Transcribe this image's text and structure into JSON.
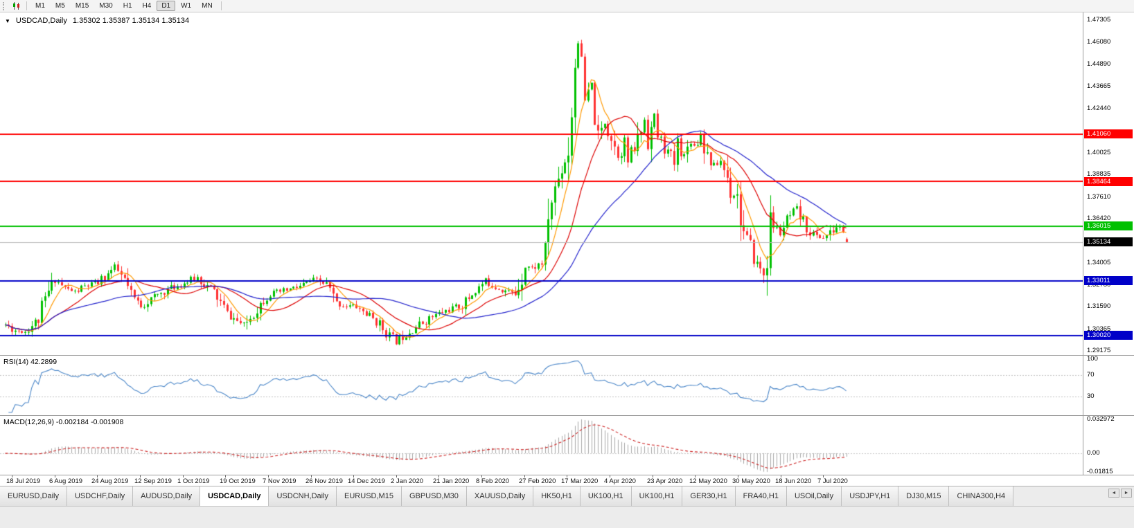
{
  "toolbar": {
    "timeframes": [
      {
        "label": "M1",
        "active": false
      },
      {
        "label": "M5",
        "active": false
      },
      {
        "label": "M15",
        "active": false
      },
      {
        "label": "M30",
        "active": false
      },
      {
        "label": "H1",
        "active": false
      },
      {
        "label": "H4",
        "active": false
      },
      {
        "label": "D1",
        "active": true
      },
      {
        "label": "W1",
        "active": false
      },
      {
        "label": "MN",
        "active": false
      }
    ]
  },
  "icons": {
    "collapse": "▼",
    "scroll_left": "◄",
    "scroll_right": "►"
  },
  "main_chart": {
    "title": "USDCAD,Daily",
    "ohlc": "1.35302 1.35387 1.35134 1.35134"
  },
  "rsi_panel": {
    "label": "RSI(14) 42.2899",
    "line_color": "#4a86c8",
    "level_lines": [
      70,
      30
    ],
    "scale_labels": [
      {
        "value": 100,
        "text": "100"
      },
      {
        "value": 70,
        "text": "70"
      },
      {
        "value": 30,
        "text": "30"
      }
    ]
  },
  "macd_panel": {
    "label": "MACD(12,26,9) -0.002184 -0.001908",
    "scale_top": "0.032972",
    "scale_zero": "0.00",
    "scale_bottom": "-0.01815",
    "histogram_color": "#a8a8a8",
    "signal_color": "#cc2222"
  },
  "price_scale": {
    "ticks": [
      "1.47305",
      "1.46080",
      "1.44890",
      "1.43665",
      "1.42440",
      "1.40025",
      "1.38835",
      "1.37610",
      "1.36420",
      "1.34005",
      "1.32780",
      "1.31590",
      "1.30365",
      "1.29175"
    ],
    "current_price_badge": {
      "text": "1.35134",
      "value": 1.35134,
      "background": "#000000",
      "text_color": "#ffffff"
    }
  },
  "date_axis": [
    "18 Jul 2019",
    "6 Aug 2019",
    "24 Aug 2019",
    "12 Sep 2019",
    "1 Oct 2019",
    "19 Oct 2019",
    "7 Nov 2019",
    "26 Nov 2019",
    "14 Dec 2019",
    "2 Jan 2020",
    "21 Jan 2020",
    "8 Feb 2020",
    "27 Feb 2020",
    "17 Mar 2020",
    "4 Apr 2020",
    "23 Apr 2020",
    "12 May 2020",
    "30 May 2020",
    "18 Jun 2020",
    "7 Jul 2020"
  ],
  "tabs": {
    "active_index": 3,
    "items": [
      "EURUSD,Daily",
      "USDCHF,Daily",
      "AUDUSD,Daily",
      "USDCAD,Daily",
      "USDCNH,Daily",
      "EURUSD,M15",
      "GBPUSD,M30",
      "XAUUSD,Daily",
      "HK50,H1",
      "UK100,H1",
      "UK100,H1",
      "GER30,H1",
      "FRA40,H1",
      "USOil,Daily",
      "USDJPY,H1",
      "DJ30,M15",
      "CHINA300,H4"
    ]
  },
  "chart_data": {
    "type": "candlestick",
    "symbol": "USDCAD",
    "timeframe": "Daily",
    "title": "USDCAD,Daily",
    "last_candle": {
      "open": 1.35302,
      "high": 1.35387,
      "low": 1.35134,
      "close": 1.35134
    },
    "current_price": 1.35134,
    "visible_price_range": {
      "min": 1.28908,
      "max": 1.47725
    },
    "candle_count": 255,
    "seed": 11,
    "candle_colors": {
      "up": "#00c000",
      "down": "#ff3232"
    },
    "close_path_keypoints": [
      [
        0,
        1.306
      ],
      [
        3,
        1.303
      ],
      [
        6,
        1.3025
      ],
      [
        10,
        1.309
      ],
      [
        13,
        1.324
      ],
      [
        15,
        1.331
      ],
      [
        18,
        1.326
      ],
      [
        21,
        1.324
      ],
      [
        24,
        1.327
      ],
      [
        28,
        1.329
      ],
      [
        31,
        1.334
      ],
      [
        33,
        1.3375
      ],
      [
        36,
        1.33
      ],
      [
        38,
        1.322
      ],
      [
        41,
        1.3165
      ],
      [
        44,
        1.32
      ],
      [
        47,
        1.3235
      ],
      [
        50,
        1.326
      ],
      [
        54,
        1.329
      ],
      [
        58,
        1.332
      ],
      [
        61,
        1.327
      ],
      [
        63,
        1.324
      ],
      [
        65,
        1.318
      ],
      [
        67,
        1.312
      ],
      [
        70,
        1.308
      ],
      [
        72,
        1.3055
      ],
      [
        74,
        1.31
      ],
      [
        76,
        1.315
      ],
      [
        78,
        1.32
      ],
      [
        80,
        1.323
      ],
      [
        83,
        1.324
      ],
      [
        86,
        1.3255
      ],
      [
        89,
        1.327
      ],
      [
        93,
        1.3305
      ],
      [
        95,
        1.3295
      ],
      [
        97,
        1.328
      ],
      [
        100,
        1.3175
      ],
      [
        103,
        1.3165
      ],
      [
        106,
        1.316
      ],
      [
        109,
        1.312
      ],
      [
        112,
        1.308
      ],
      [
        115,
        1.302
      ],
      [
        118,
        1.2965
      ],
      [
        120,
        1.3
      ],
      [
        124,
        1.305
      ],
      [
        128,
        1.3095
      ],
      [
        132,
        1.313
      ],
      [
        135,
        1.315
      ],
      [
        138,
        1.3165
      ],
      [
        141,
        1.323
      ],
      [
        145,
        1.33
      ],
      [
        148,
        1.327
      ],
      [
        150,
        1.3255
      ],
      [
        152,
        1.324
      ],
      [
        154,
        1.323
      ],
      [
        156,
        1.333
      ],
      [
        157,
        1.339
      ],
      [
        159,
        1.337
      ],
      [
        160,
        1.338
      ],
      [
        162,
        1.34
      ],
      [
        163,
        1.342
      ],
      [
        164,
        1.366
      ],
      [
        166,
        1.381
      ],
      [
        168,
        1.392
      ],
      [
        170,
        1.402
      ],
      [
        171,
        1.424
      ],
      [
        172,
        1.449
      ],
      [
        173,
        1.463
      ],
      [
        174,
        1.444
      ],
      [
        175,
        1.428
      ],
      [
        177,
        1.436
      ],
      [
        179,
        1.408
      ],
      [
        181,
        1.417
      ],
      [
        183,
        1.409
      ],
      [
        185,
        1.399
      ],
      [
        187,
        1.406
      ],
      [
        188,
        1.3955
      ],
      [
        190,
        1.403
      ],
      [
        192,
        1.413
      ],
      [
        193,
        1.419
      ],
      [
        194,
        1.406
      ],
      [
        196,
        1.42
      ],
      [
        197,
        1.41
      ],
      [
        199,
        1.403
      ],
      [
        201,
        1.398
      ],
      [
        202,
        1.3945
      ],
      [
        203,
        1.406
      ],
      [
        205,
        1.399
      ],
      [
        207,
        1.407
      ],
      [
        208,
        1.404
      ],
      [
        210,
        1.411
      ],
      [
        212,
        1.399
      ],
      [
        214,
        1.393
      ],
      [
        216,
        1.396
      ],
      [
        218,
        1.387
      ],
      [
        219,
        1.379
      ],
      [
        221,
        1.377
      ],
      [
        223,
        1.356
      ],
      [
        225,
        1.348
      ],
      [
        227,
        1.339
      ],
      [
        229,
        1.334
      ],
      [
        230,
        1.344
      ],
      [
        231,
        1.362
      ],
      [
        233,
        1.358
      ],
      [
        234,
        1.356
      ],
      [
        236,
        1.363
      ],
      [
        238,
        1.367
      ],
      [
        239,
        1.369
      ],
      [
        241,
        1.362
      ],
      [
        243,
        1.357
      ],
      [
        245,
        1.3545
      ],
      [
        247,
        1.354
      ],
      [
        249,
        1.356
      ],
      [
        251,
        1.3595
      ],
      [
        253,
        1.3585
      ],
      [
        254,
        1.3513
      ]
    ],
    "moving_averages": [
      {
        "period": 7,
        "color": "#ff9900"
      },
      {
        "period": 18,
        "color": "#dd0000"
      },
      {
        "period": 40,
        "color": "#2222cc"
      }
    ],
    "horizontal_lines": [
      {
        "price": 1.4106,
        "label": "1.41060",
        "color": "#ff0000"
      },
      {
        "price": 1.38464,
        "label": "1.38464",
        "color": "#ff0000"
      },
      {
        "price": 1.36015,
        "label": "1.36015",
        "color": "#00c000"
      },
      {
        "price": 1.33011,
        "label": "1.33011",
        "color": "#0000c8"
      },
      {
        "price": 1.3002,
        "label": "1.30020",
        "color": "#0000c8"
      }
    ],
    "indicators": {
      "rsi": {
        "period": 14,
        "current": 42.2899
      },
      "macd": {
        "fast": 12,
        "slow": 26,
        "signal": 9,
        "current_main": -0.002184,
        "current_signal": -0.001908
      }
    }
  }
}
